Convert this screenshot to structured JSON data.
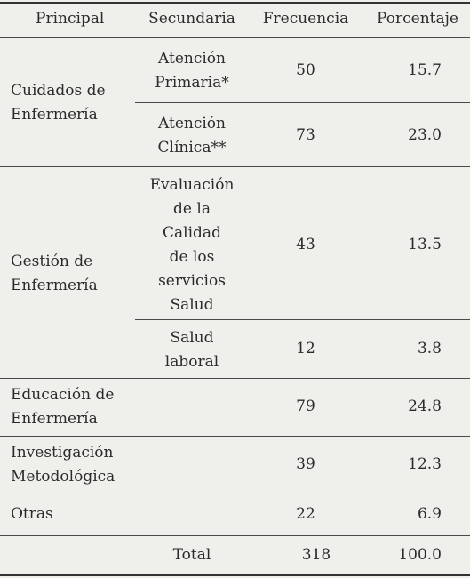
{
  "headers": {
    "principal": "Principal",
    "secundaria": "Secundaria",
    "frecuencia": "Frecuencia",
    "porcentaje": "Porcentaje"
  },
  "groups": [
    {
      "principal": "Cuidados de\nEnfermería",
      "rows": [
        {
          "secundaria": "Atención\nPrimaria*",
          "frecuencia": "50",
          "porcentaje": "15.7"
        },
        {
          "secundaria": "Atención\nClínica**",
          "frecuencia": "73",
          "porcentaje": "23.0"
        }
      ]
    },
    {
      "principal": "Gestión de\nEnfermería",
      "rows": [
        {
          "secundaria": "Evaluación\nde la\nCalidad\nde los\nservicios\nSalud",
          "frecuencia": "43",
          "porcentaje": "13.5"
        },
        {
          "secundaria": "Salud\nlaboral",
          "frecuencia": "12",
          "porcentaje": "3.8"
        }
      ]
    },
    {
      "principal": "Educación de\nEnfermería",
      "rows": [
        {
          "secundaria": "",
          "frecuencia": "79",
          "porcentaje": "24.8"
        }
      ]
    },
    {
      "principal": "Investigación\nMetodológica",
      "rows": [
        {
          "secundaria": "",
          "frecuencia": "39",
          "porcentaje": "12.3"
        }
      ]
    },
    {
      "principal": "Otras",
      "rows": [
        {
          "secundaria": "",
          "frecuencia": "22",
          "porcentaje": "6.9"
        }
      ]
    }
  ],
  "total": {
    "label": "Total",
    "frecuencia": "318",
    "porcentaje": "100.0"
  }
}
